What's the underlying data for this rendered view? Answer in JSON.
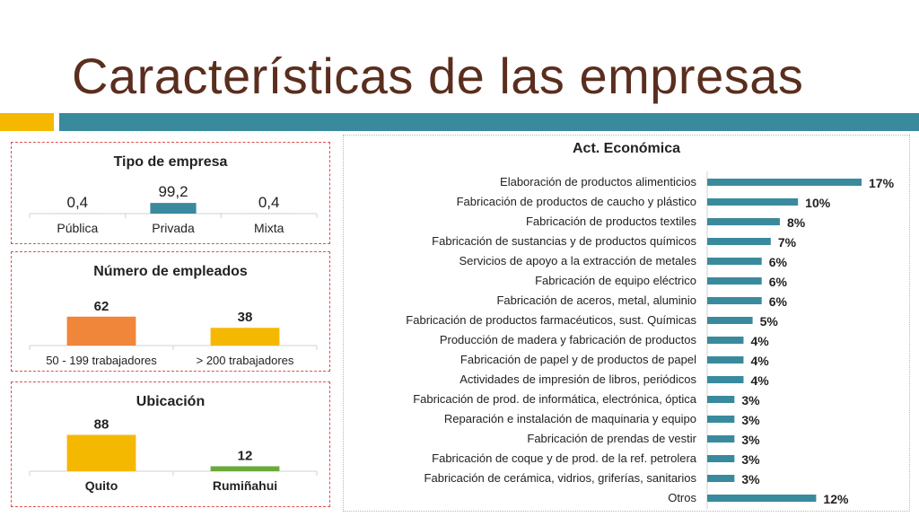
{
  "slide": {
    "title": "Características de las empresas",
    "colors": {
      "title": "#5a2e1e",
      "accent_orange": "#f5b800",
      "accent_teal": "#3a8a9e",
      "panel_border": "#e04f4f"
    }
  },
  "chart_data": [
    {
      "type": "bar",
      "title": "Tipo de empresa",
      "categories": [
        "Pública",
        "Privada",
        "Mixta"
      ],
      "values": [
        0.4,
        99.2,
        0.4
      ],
      "value_labels": [
        "0,4",
        "99,2",
        "0,4"
      ],
      "color": "#3a8a9e",
      "grid": false,
      "legend": "none"
    },
    {
      "type": "bar",
      "title": "Número de empleados",
      "categories": [
        "50 - 199 trabajadores",
        "> 200 trabajadores"
      ],
      "values": [
        62,
        38
      ],
      "value_labels": [
        "62",
        "38"
      ],
      "colors": [
        "#f0863a",
        "#f5b800"
      ],
      "grid": false,
      "legend": "none"
    },
    {
      "type": "bar",
      "title": "Ubicación",
      "categories": [
        "Quito",
        "Rumiñahui"
      ],
      "values": [
        88,
        12
      ],
      "value_labels": [
        "88",
        "12"
      ],
      "colors": [
        "#f5b800",
        "#6aaa3a"
      ],
      "grid": false,
      "legend": "none"
    },
    {
      "type": "bar",
      "orientation": "horizontal",
      "title": "Act. Económica",
      "categories": [
        "Elaboración de productos alimenticios",
        "Fabricación de productos de caucho y plástico",
        "Fabricación de productos textiles",
        "Fabricación de sustancias y de productos químicos",
        "Servicios de apoyo a la extracción de metales",
        "Fabricación de equipo eléctrico",
        "Fabricación de aceros, metal, aluminio",
        "Fabricación de productos farmacéuticos, sust. Químicas",
        "Producción de madera y fabricación de productos",
        "Fabricación de papel y de productos de papel",
        "Actividades de impresión de libros, periódicos",
        "Fabricación de prod. de informática, electrónica, óptica",
        "Reparación e instalación de maquinaria y equipo",
        "Fabricación de prendas de vestir",
        "Fabricación de coque y de prod. de la ref. petrolera",
        "Fabricación de cerámica, vidrios, griferías, sanitarios",
        "Otros"
      ],
      "values": [
        17,
        10,
        8,
        7,
        6,
        6,
        6,
        5,
        4,
        4,
        4,
        3,
        3,
        3,
        3,
        3,
        12
      ],
      "value_labels": [
        "17%",
        "10%",
        "8%",
        "7%",
        "6%",
        "6%",
        "6%",
        "5%",
        "4%",
        "4%",
        "4%",
        "3%",
        "3%",
        "3%",
        "3%",
        "3%",
        "12%"
      ],
      "color": "#3a8a9e",
      "grid": false,
      "legend": "none"
    }
  ]
}
